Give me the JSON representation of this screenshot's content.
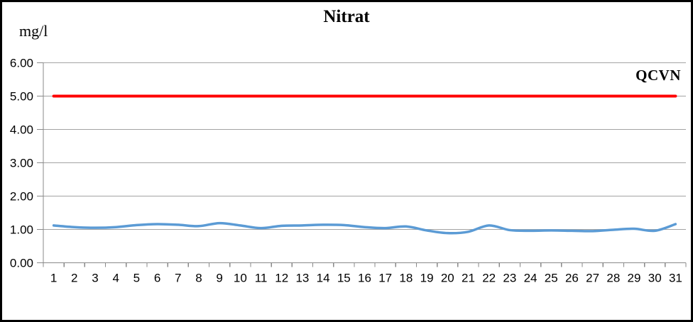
{
  "chart_data": {
    "type": "line",
    "title": "Nitrat",
    "ylabel": "mg/l",
    "xlabel": "",
    "categories": [
      1,
      2,
      3,
      4,
      5,
      6,
      7,
      8,
      9,
      10,
      11,
      12,
      13,
      14,
      15,
      16,
      17,
      18,
      19,
      20,
      21,
      22,
      23,
      24,
      25,
      26,
      27,
      28,
      29,
      30,
      31
    ],
    "series": [
      {
        "name": "Nitrat",
        "color": "#5B9BD5",
        "smooth": true,
        "line_width": 3.5,
        "values": [
          1.12,
          1.07,
          1.05,
          1.07,
          1.13,
          1.16,
          1.14,
          1.1,
          1.19,
          1.12,
          1.04,
          1.11,
          1.12,
          1.14,
          1.13,
          1.07,
          1.04,
          1.09,
          0.97,
          0.89,
          0.93,
          1.12,
          0.98,
          0.96,
          0.97,
          0.96,
          0.95,
          0.99,
          1.02,
          0.96,
          1.16
        ]
      },
      {
        "name": "QCVN",
        "color": "#FF0000",
        "smooth": false,
        "line_width": 4,
        "constant_value": 5.0,
        "x_span": [
          1,
          31
        ]
      }
    ],
    "ylim": [
      0,
      6
    ],
    "ytick_step": 1.0,
    "ytick_labels": [
      "0.00",
      "1.00",
      "2.00",
      "3.00",
      "4.00",
      "5.00",
      "6.00"
    ],
    "xtick_labels": [
      "1",
      "2",
      "3",
      "4",
      "5",
      "6",
      "7",
      "8",
      "9",
      "10",
      "11",
      "12",
      "13",
      "14",
      "15",
      "16",
      "17",
      "18",
      "19",
      "20",
      "21",
      "22",
      "23",
      "24",
      "25",
      "26",
      "27",
      "28",
      "29",
      "30",
      "31"
    ],
    "grid": "horizontal",
    "legend_position": "none",
    "colors": {
      "gridline": "#A3A3A3",
      "axis": "#898989",
      "text": "#000000",
      "background": "#FFFFFF",
      "frame_border": "#000000"
    }
  }
}
